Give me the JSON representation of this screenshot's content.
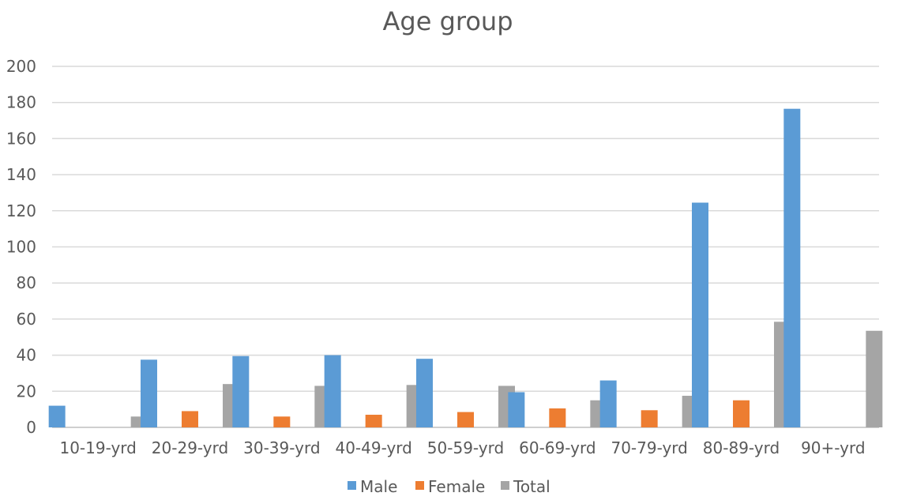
{
  "chart_data": {
    "type": "bar",
    "title": "Age group",
    "xlabel": "",
    "ylabel": "",
    "ylim": [
      0,
      200
    ],
    "yticks": [
      0,
      20,
      40,
      60,
      80,
      100,
      120,
      140,
      160,
      180,
      200
    ],
    "grid": true,
    "legend_position": "bottom",
    "categories": [
      "10-19-yrd",
      "20-29-yrd",
      "30-39-yrd",
      "40-49-yrd",
      "50-59-yrd",
      "60-69-yrd",
      "70-79-yrd",
      "80-89-yrd",
      "90+-yrd"
    ],
    "series": [
      {
        "name": "Male",
        "color": "#5b9bd5",
        "values": [
          12,
          37.5,
          39.5,
          40,
          38,
          19.5,
          26,
          124.5,
          176.5
        ]
      },
      {
        "name": "Female",
        "color": "#ed7d31",
        "values": [
          0,
          9,
          6,
          7,
          8.5,
          10.5,
          9.5,
          15,
          0
        ]
      },
      {
        "name": "Total",
        "color": "#a5a5a5",
        "values": [
          6,
          24,
          23,
          23.5,
          23,
          15,
          17.5,
          58.5,
          53.5
        ]
      }
    ]
  }
}
